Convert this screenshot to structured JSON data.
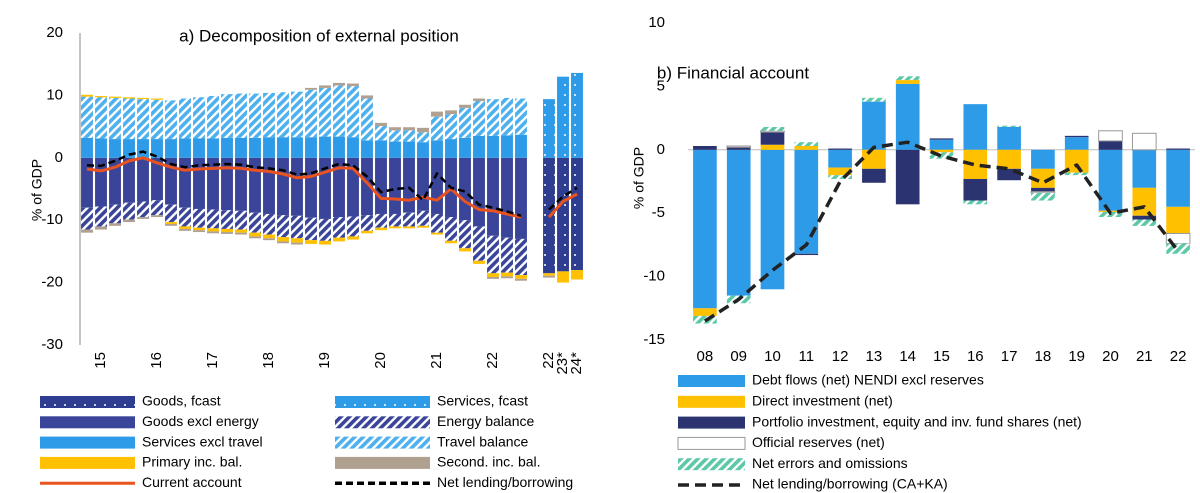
{
  "chart_data": [
    {
      "type": "bar",
      "title": "a) Decomposition of external position",
      "y_label": "% of GDP",
      "categories": [
        null,
        "15",
        null,
        null,
        null,
        "16",
        null,
        null,
        null,
        "17",
        null,
        null,
        null,
        "18",
        null,
        null,
        null,
        "19",
        null,
        null,
        null,
        "20",
        null,
        null,
        null,
        "21",
        null,
        null,
        null,
        "22",
        null,
        null,
        null,
        "22",
        "23*",
        "24*"
      ],
      "ylim": [
        -30,
        20
      ],
      "yticks": [
        -30,
        -20,
        -10,
        0,
        10,
        20
      ],
      "series": [
        {
          "name": "Goods, fcast",
          "color": "#2e3d8f",
          "style": "dots",
          "values": [
            null,
            null,
            null,
            null,
            null,
            null,
            null,
            null,
            null,
            null,
            null,
            null,
            null,
            null,
            null,
            null,
            null,
            null,
            null,
            null,
            null,
            null,
            null,
            null,
            null,
            null,
            null,
            null,
            null,
            null,
            null,
            null,
            null,
            -18.5,
            -18.2,
            -18
          ]
        },
        {
          "name": "Services, fcast",
          "color": "#2e9be8",
          "style": "dots",
          "values": [
            null,
            null,
            null,
            null,
            null,
            null,
            null,
            null,
            null,
            null,
            null,
            null,
            null,
            null,
            null,
            null,
            null,
            null,
            null,
            null,
            null,
            null,
            null,
            null,
            null,
            null,
            null,
            null,
            null,
            null,
            null,
            null,
            null,
            9.4,
            13,
            13.6
          ]
        },
        {
          "name": "Goods excl energy",
          "color": "#3a4599",
          "style": "solid",
          "values": [
            -8,
            -7.8,
            -7.5,
            -7.2,
            -7,
            -6.8,
            -7.5,
            -8,
            -8.2,
            -8.3,
            -8.4,
            -8.5,
            -8.8,
            -9,
            -9.2,
            -9.3,
            -9.6,
            -9.8,
            -9.5,
            -9.4,
            -9.2,
            -9,
            -9,
            -8.8,
            -8.5,
            -9,
            -9.5,
            -10,
            -11,
            -12.5,
            -12.8,
            -13,
            null,
            null,
            null,
            null
          ]
        },
        {
          "name": "Energy balance",
          "color": "#3a4599",
          "style": "hatch",
          "values": [
            -3.5,
            -3.2,
            -3,
            -2.7,
            -2.5,
            -2.4,
            -2.8,
            -3,
            -3,
            -3,
            -3,
            -3,
            -3.2,
            -3.3,
            -3.5,
            -3.6,
            -3.6,
            -3.5,
            -3.3,
            -3.2,
            -2.5,
            -2.2,
            -2,
            -2.2,
            -2.4,
            -3,
            -3.8,
            -4.5,
            -5.5,
            -6,
            -5.6,
            -5.8,
            null,
            null,
            null,
            null
          ]
        },
        {
          "name": "Services excl travel",
          "color": "#2e9be8",
          "style": "solid",
          "values": [
            3.2,
            3.1,
            3,
            3,
            3,
            3,
            3,
            3.1,
            3.1,
            3.1,
            3.2,
            3.2,
            3.2,
            3.3,
            3.3,
            3.3,
            3.3,
            3.4,
            3.4,
            3.3,
            2.8,
            2.8,
            2.6,
            2.6,
            2.5,
            2.8,
            3,
            3.2,
            3.5,
            3.5,
            3.6,
            3.7,
            null,
            null,
            null,
            null
          ]
        },
        {
          "name": "Travel balance",
          "color": "#4fb0ee",
          "style": "hatch",
          "values": [
            6.6,
            6.6,
            6.6,
            6.5,
            6.4,
            6.3,
            6.2,
            6.4,
            6.6,
            6.8,
            7,
            7.1,
            7.1,
            7.1,
            7.2,
            7.3,
            7.6,
            7.8,
            8.2,
            8.2,
            6.7,
            2.3,
            1.8,
            1.8,
            1.6,
            3.8,
            4,
            4.8,
            5.6,
            5.9,
            6,
            5.8,
            null,
            null,
            null,
            null
          ]
        },
        {
          "name": "Primary inc. bal.",
          "color": "#ffc000",
          "style": "solid",
          "values": [
            0.3,
            0.2,
            0.2,
            0.2,
            0.2,
            0.2,
            -0.3,
            -0.4,
            -0.4,
            -0.5,
            -0.5,
            -0.5,
            -0.6,
            -0.6,
            -0.7,
            -0.7,
            -0.6,
            -0.6,
            -0.6,
            -0.5,
            -0.4,
            -0.4,
            -0.3,
            -0.3,
            -0.3,
            -0.3,
            -0.4,
            -0.5,
            -0.5,
            -0.6,
            -0.6,
            -0.6,
            null,
            -0.4,
            -1.8,
            -1.5
          ]
        },
        {
          "name": "Second. inc. bal.",
          "color": "#b0a090",
          "style": "solid",
          "values": [
            -0.5,
            -0.5,
            -0.4,
            -0.4,
            -0.3,
            -0.3,
            -0.3,
            -0.3,
            -0.3,
            -0.3,
            -0.3,
            -0.3,
            -0.3,
            -0.3,
            -0.3,
            -0.3,
            0.3,
            0.4,
            0.4,
            0.4,
            0.5,
            0.5,
            0.5,
            0.5,
            0.7,
            0.8,
            0.6,
            0.5,
            0.4,
            -0.3,
            -0.3,
            -0.3,
            null,
            -0.3,
            0,
            0
          ]
        },
        {
          "name": "Current account",
          "color": "#e8531f",
          "style": "line",
          "values": [
            -1.8,
            -2.1,
            -1.5,
            -0.5,
            0,
            -0.8,
            -1.5,
            -2,
            -1.8,
            -1.7,
            -1.6,
            -1.7,
            -2,
            -2.2,
            -2.6,
            -3.2,
            -3,
            -2.3,
            -1.6,
            -1.7,
            -4,
            -6.5,
            -6.6,
            -6.8,
            -6.3,
            -6.8,
            -5,
            -7,
            -8.3,
            -8.5,
            -9,
            -9.5,
            null,
            -9.5,
            -7,
            -5.8
          ]
        },
        {
          "name": "Net lending/borrowing",
          "color": "#000000",
          "style": "dashed",
          "values": [
            -1.2,
            -1.3,
            -0.5,
            0.5,
            1,
            0.2,
            -1,
            -1.5,
            -1.2,
            -1.1,
            -1,
            -1.1,
            -1.5,
            -1.7,
            -2,
            -2.7,
            -2.5,
            -1.7,
            -1,
            -1.2,
            -3,
            -5.5,
            -5,
            -4.8,
            -6.8,
            -2.5,
            -4.8,
            -5.4,
            -7.5,
            -8,
            -8.6,
            -9.3,
            null,
            -8.3,
            -6.2,
            -4.8
          ]
        }
      ]
    },
    {
      "type": "bar",
      "title": "b) Financial account",
      "y_label": "% of GDP",
      "categories": [
        "08",
        "09",
        "10",
        "11",
        "12",
        "13",
        "14",
        "15",
        "16",
        "17",
        "18",
        "19",
        "20",
        "21",
        "22"
      ],
      "ylim": [
        -15,
        10
      ],
      "yticks": [
        -15,
        -10,
        -5,
        0,
        5,
        10
      ],
      "series": [
        {
          "name": "Debt flows (net) NENDI excl reserves",
          "color": "#2e9be8",
          "style": "solid",
          "values": [
            -12.5,
            -11.5,
            -11,
            -8.2,
            -1.4,
            3.8,
            5.2,
            0.8,
            3.6,
            1.8,
            -1.5,
            1,
            -4.8,
            -3,
            -4.5
          ]
        },
        {
          "name": "Direct investment (net)",
          "color": "#ffc000",
          "style": "solid",
          "values": [
            -0.6,
            0,
            0.4,
            0.3,
            -0.6,
            -1.5,
            0.3,
            -0.2,
            -2.3,
            -1.5,
            -1.5,
            -1.8,
            -0.1,
            -2.2,
            -2.1
          ]
        },
        {
          "name": "Portfolio investment, equity and inv. fund shares (net)",
          "color": "#2b3470",
          "style": "solid",
          "values": [
            0.3,
            0.2,
            1,
            -0.1,
            0.1,
            -1.1,
            -4.3,
            0.1,
            -1.7,
            -0.9,
            -0.3,
            0.1,
            0.7,
            -0.3,
            0.1
          ]
        },
        {
          "name": "Official reserves (net)",
          "color": "#ffffff",
          "edgecolor": "#999999",
          "style": "solid",
          "values": [
            0,
            0.1,
            0.1,
            0,
            0,
            0,
            0,
            0,
            0,
            0,
            -0.1,
            0,
            0.8,
            1.3,
            -0.8
          ]
        },
        {
          "name": "Net errors and omissions",
          "color": "#5cc8a8",
          "style": "hatch",
          "values": [
            -0.6,
            -0.6,
            0.3,
            0.3,
            -0.3,
            0.3,
            0.3,
            -0.5,
            -0.3,
            0.1,
            -0.6,
            -0.2,
            -0.4,
            -0.5,
            -0.8
          ]
        },
        {
          "name": "Net lending/borrowing (CA+KA)",
          "color": "#222222",
          "style": "dashed",
          "values": [
            -13.5,
            -11.8,
            -9.5,
            -7.5,
            -2.5,
            0.2,
            0.6,
            -0.5,
            -1.2,
            -1.5,
            -2.6,
            -1.2,
            -5,
            -4.5,
            -8
          ]
        }
      ]
    }
  ]
}
